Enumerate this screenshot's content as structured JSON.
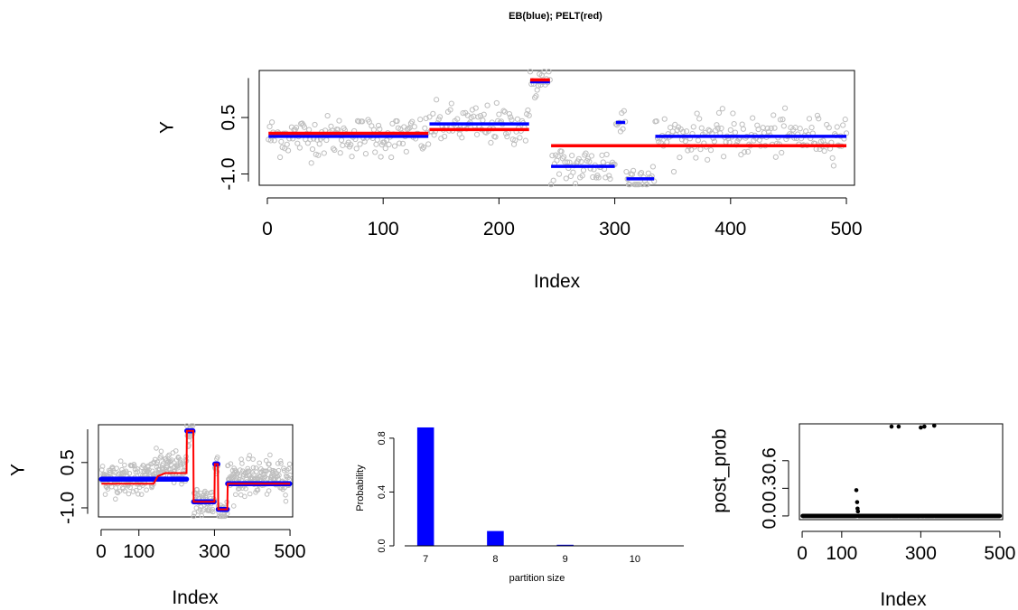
{
  "figure": {
    "title": "EB(blue); PELT(red)"
  },
  "chart_data": [
    {
      "type": "scatter",
      "panel": "top-main",
      "title": "EB(blue); PELT(red)",
      "xlabel": "Index",
      "ylabel": "Y",
      "xlim": [
        -7,
        507
      ],
      "ylim": [
        -1.3,
        1.75
      ],
      "xticks": [
        0,
        100,
        200,
        300,
        400,
        500
      ],
      "yticks": [
        -1.0,
        0.5
      ],
      "ytick_labels": [
        "-1.0",
        "0.5"
      ],
      "point_color": "#bebebe",
      "n_points": 500,
      "series": [
        {
          "name": "EB",
          "color": "#0000ff",
          "segments": [
            {
              "x": [
                1,
                139
              ],
              "y": 0.0
            },
            {
              "x": [
                140,
                226
              ],
              "y": 0.33
            },
            {
              "x": [
                227,
                244
              ],
              "y": 1.45
            },
            {
              "x": [
                245,
                300
              ],
              "y": -0.8
            },
            {
              "x": [
                301,
                309
              ],
              "y": 0.37
            },
            {
              "x": [
                310,
                334
              ],
              "y": -1.13
            },
            {
              "x": [
                335,
                500
              ],
              "y": 0.0
            }
          ]
        },
        {
          "name": "PELT",
          "color": "#ff0000",
          "segments": [
            {
              "x": [
                1,
                139
              ],
              "y": 0.08
            },
            {
              "x": [
                140,
                226
              ],
              "y": 0.18
            },
            {
              "x": [
                227,
                244
              ],
              "y": 1.5
            },
            {
              "x": [
                245,
                500
              ],
              "y": -0.25
            }
          ]
        }
      ]
    },
    {
      "type": "scatter",
      "panel": "bottom-left",
      "xlabel": "Index",
      "ylabel": "Y",
      "xlim": [
        -7,
        507
      ],
      "ylim": [
        -1.3,
        1.75
      ],
      "xticks": [
        0,
        100,
        300,
        500
      ],
      "yticks": [
        -1.0,
        0.5
      ],
      "ytick_labels": [
        "-1.0",
        "0.5"
      ],
      "series": [
        {
          "name": "EB",
          "color": "#0000ff",
          "segments": [
            {
              "x": [
                1,
                139
              ],
              "y": -0.05
            },
            {
              "x": [
                140,
                226
              ],
              "y": -0.05
            },
            {
              "x": [
                227,
                244
              ],
              "y": 1.55
            },
            {
              "x": [
                245,
                300
              ],
              "y": -0.8
            },
            {
              "x": [
                301,
                309
              ],
              "y": 0.45
            },
            {
              "x": [
                310,
                334
              ],
              "y": -1.05
            },
            {
              "x": [
                335,
                500
              ],
              "y": -0.2
            }
          ]
        },
        {
          "name": "PELT",
          "color": "#ff0000",
          "steps": [
            [
              1,
              -0.2
            ],
            [
              139,
              -0.2
            ],
            [
              150,
              0.05
            ],
            [
              170,
              0.15
            ],
            [
              226,
              0.15
            ],
            [
              227,
              1.55
            ],
            [
              244,
              1.55
            ],
            [
              245,
              -0.8
            ],
            [
              300,
              -0.8
            ],
            [
              301,
              0.45
            ],
            [
              309,
              0.45
            ],
            [
              310,
              -1.05
            ],
            [
              334,
              -1.05
            ],
            [
              335,
              -0.2
            ],
            [
              500,
              -0.2
            ]
          ]
        }
      ]
    },
    {
      "type": "bar",
      "panel": "bottom-middle",
      "xlabel": "partition size",
      "ylabel": "Probability",
      "categories": [
        "7",
        "8",
        "9",
        "10"
      ],
      "values": [
        0.88,
        0.11,
        0.008,
        0.002
      ],
      "ylim": [
        0,
        0.9
      ],
      "yticks": [
        0.0,
        0.4,
        0.8
      ],
      "ytick_labels": [
        "0.0",
        "0.4",
        "0.8"
      ],
      "bar_color": "#0000ff"
    },
    {
      "type": "scatter",
      "panel": "bottom-right",
      "xlabel": "Index",
      "ylabel": "post_prob",
      "xlim": [
        -7,
        507
      ],
      "ylim": [
        -0.04,
        1.0
      ],
      "xticks": [
        0,
        100,
        300,
        500
      ],
      "yticks": [
        0.0,
        0.3,
        0.6
      ],
      "ytick_labels": [
        "0.0",
        "0.3",
        "0.6"
      ],
      "point_color": "#000000",
      "baseline": 0.0,
      "peaks": [
        {
          "x": 137,
          "y": 0.28
        },
        {
          "x": 139,
          "y": 0.15
        },
        {
          "x": 140,
          "y": 0.08
        },
        {
          "x": 141,
          "y": 0.05
        },
        {
          "x": 226,
          "y": 0.97
        },
        {
          "x": 244,
          "y": 0.97
        },
        {
          "x": 300,
          "y": 0.96
        },
        {
          "x": 309,
          "y": 0.97
        },
        {
          "x": 334,
          "y": 0.98
        }
      ]
    }
  ]
}
